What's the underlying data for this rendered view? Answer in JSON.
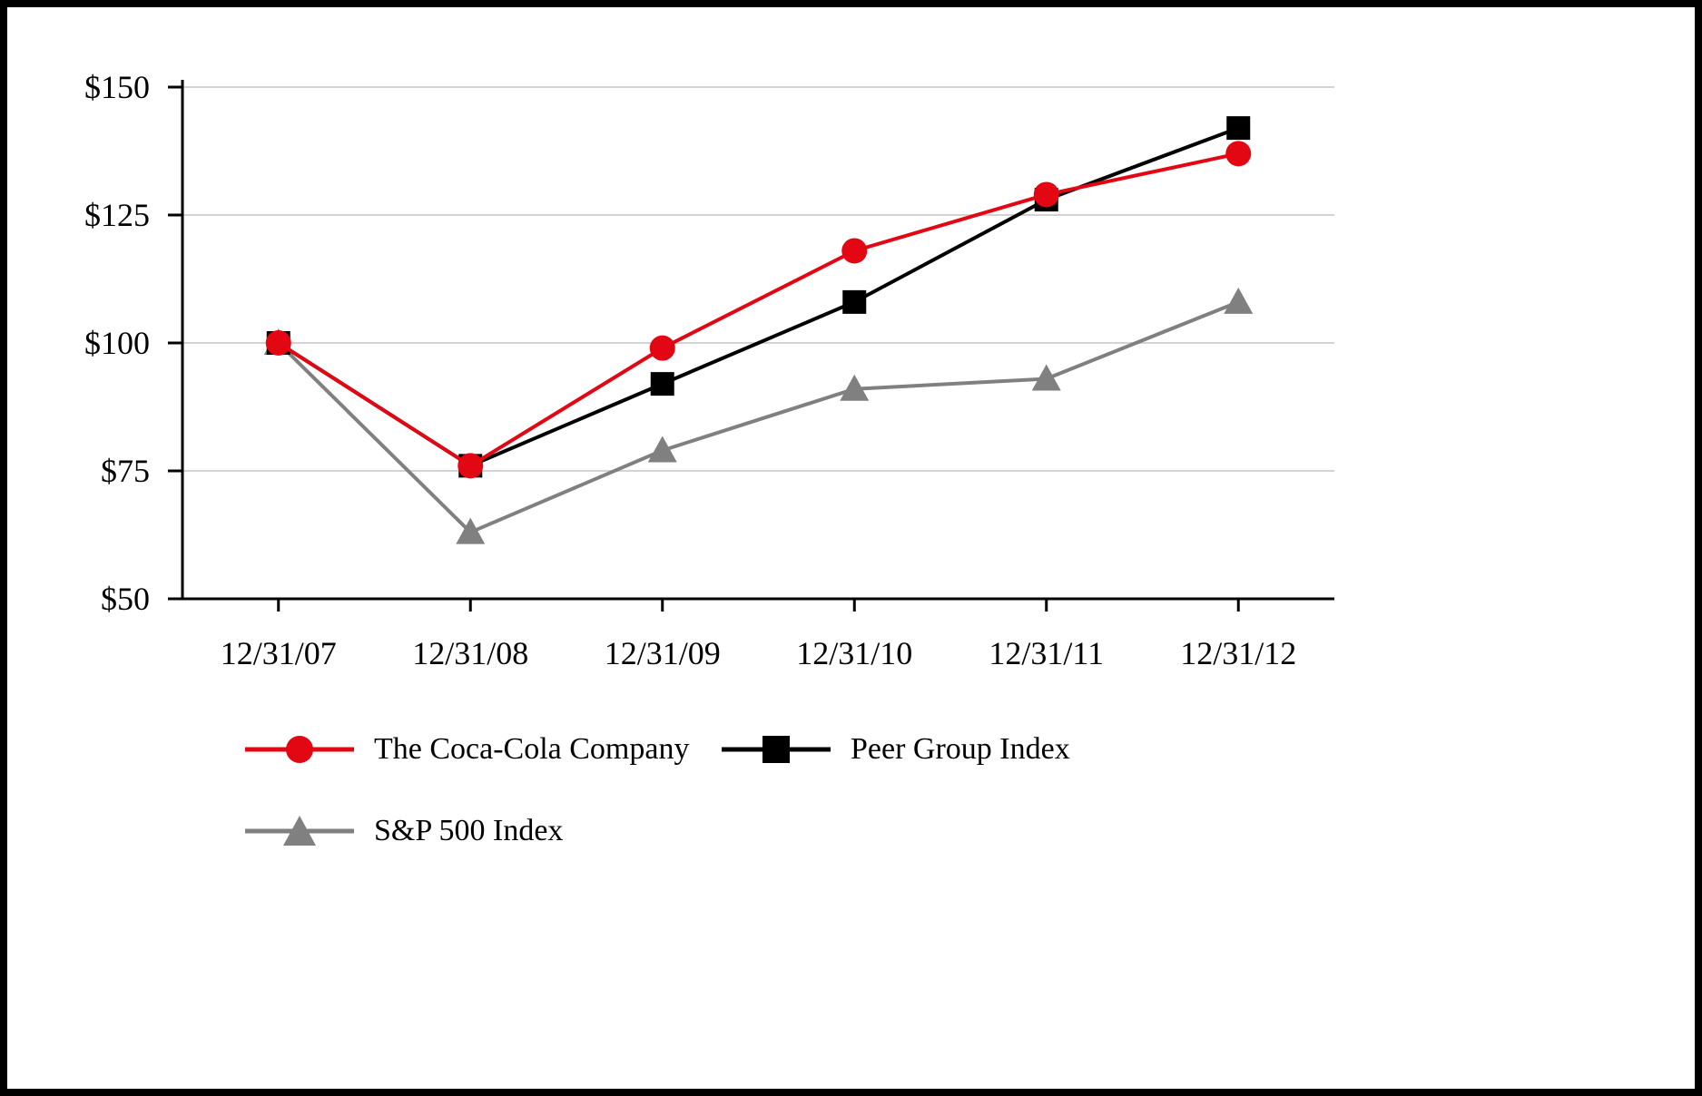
{
  "chart_data": {
    "type": "line",
    "title": "",
    "xlabel": "",
    "ylabel": "",
    "x": [
      "12/31/07",
      "12/31/08",
      "12/31/09",
      "12/31/10",
      "12/31/11",
      "12/31/12"
    ],
    "series": [
      {
        "name": "The Coca-Cola Company",
        "marker": "circle",
        "color": "#e30613",
        "values": [
          100,
          76,
          99,
          118,
          129,
          137
        ]
      },
      {
        "name": "Peer Group Index",
        "marker": "square",
        "color": "#000000",
        "values": [
          100,
          76,
          92,
          108,
          128,
          142
        ]
      },
      {
        "name": "S&P 500 Index",
        "marker": "triangle",
        "color": "#808080",
        "values": [
          100,
          63,
          79,
          91,
          93,
          108
        ]
      }
    ],
    "ylim": [
      50,
      150
    ],
    "yticks": [
      50,
      75,
      100,
      125,
      150
    ],
    "ytick_labels": [
      "$50",
      "$75",
      "$100",
      "$125",
      "$150"
    ],
    "grid": true,
    "legend_position": "bottom"
  }
}
